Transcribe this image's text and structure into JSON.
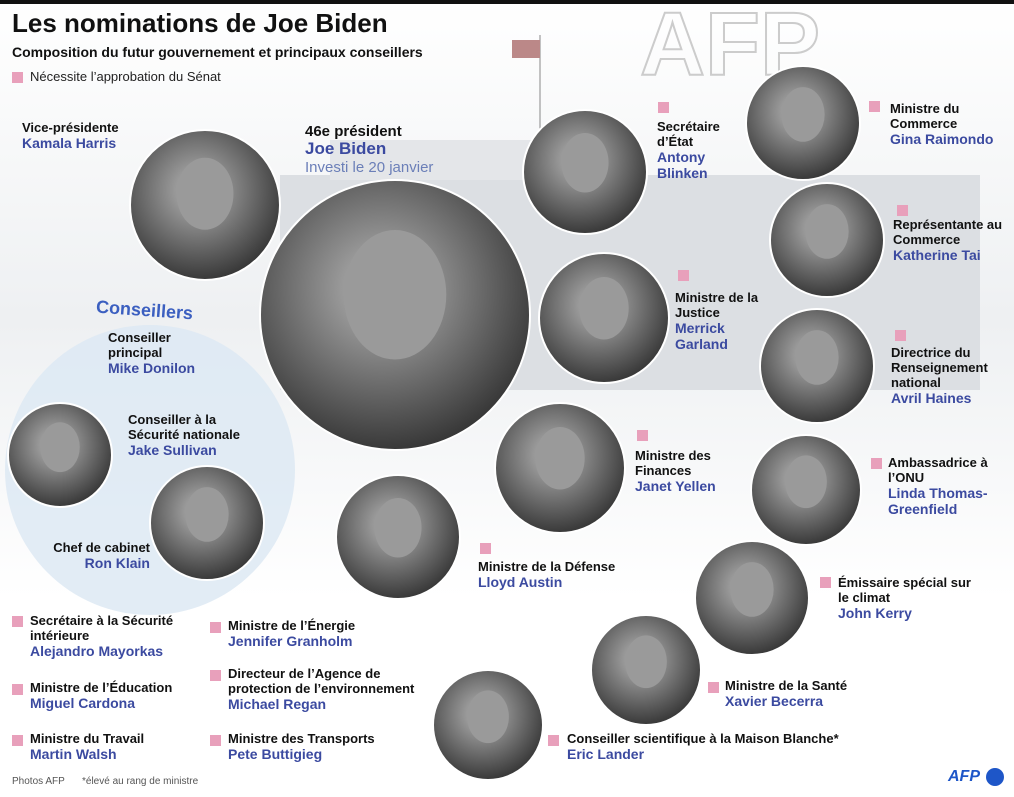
{
  "header": {
    "title": "Les nominations de Joe Biden",
    "subtitle": "Composition du futur gouvernement et principaux conseillers",
    "legend": "Nécessite l’approbation du Sénat",
    "watermark": "AFP"
  },
  "advisers_label": "Conseillers",
  "people": [
    {
      "role": "Vice-présidente",
      "name": "Kamala Harris",
      "senate": false
    },
    {
      "role": "46e président",
      "name": "Joe Biden",
      "note": "Investi le 20 janvier",
      "senate": false
    },
    {
      "role": "Secrétaire d’État",
      "name": "Antony Blinken",
      "senate": true
    },
    {
      "role": "Ministre du Commerce",
      "name": "Gina Raimondo",
      "senate": true
    },
    {
      "role": "Représentante au Commerce",
      "name": "Katherine Tai",
      "senate": true
    },
    {
      "role": "Ministre de la Justice",
      "name": "Merrick Garland",
      "senate": true
    },
    {
      "role": "Directrice du Renseignement national",
      "name": "Avril Haines",
      "senate": true
    },
    {
      "role": "Ministre des Finances",
      "name": "Janet Yellen",
      "senate": true
    },
    {
      "role": "Ambassadrice à l’ONU",
      "name": "Linda Thomas-Greenfield",
      "senate": true
    },
    {
      "role": "Ministre de la Défense",
      "name": "Lloyd Austin",
      "senate": true
    },
    {
      "role": "Émissaire spécial sur le climat",
      "name": "John Kerry",
      "senate": true
    },
    {
      "role": "Ministre de la Santé",
      "name": "Xavier Becerra",
      "senate": true
    },
    {
      "role": "Conseiller scientifique à la Maison Blanche*",
      "name": "Eric Lander",
      "senate": true
    },
    {
      "role": "Conseiller principal",
      "name": "Mike Donilon",
      "senate": false
    },
    {
      "role": "Conseiller à la Sécurité nationale",
      "name": "Jake Sullivan",
      "senate": false
    },
    {
      "role": "Chef de cabinet",
      "name": "Ron Klain",
      "senate": false
    },
    {
      "role": "Secrétaire à la Sécurité intérieure",
      "name": "Alejandro Mayorkas",
      "senate": true
    },
    {
      "role": "Ministre de l’Éducation",
      "name": "Miguel Cardona",
      "senate": true
    },
    {
      "role": "Ministre du Travail",
      "name": "Martin Walsh",
      "senate": true
    },
    {
      "role": "Ministre de l’Énergie",
      "name": "Jennifer Granholm",
      "senate": true
    },
    {
      "role": "Directeur de l’Agence de protection de l’environnement",
      "name": "Michael Regan",
      "senate": true
    },
    {
      "role": "Ministre des Transports",
      "name": "Pete Buttigieg",
      "senate": true
    }
  ],
  "footer": {
    "credit": "Photos AFP",
    "footnote": "*élevé au rang de ministre",
    "logo": "AFP"
  }
}
